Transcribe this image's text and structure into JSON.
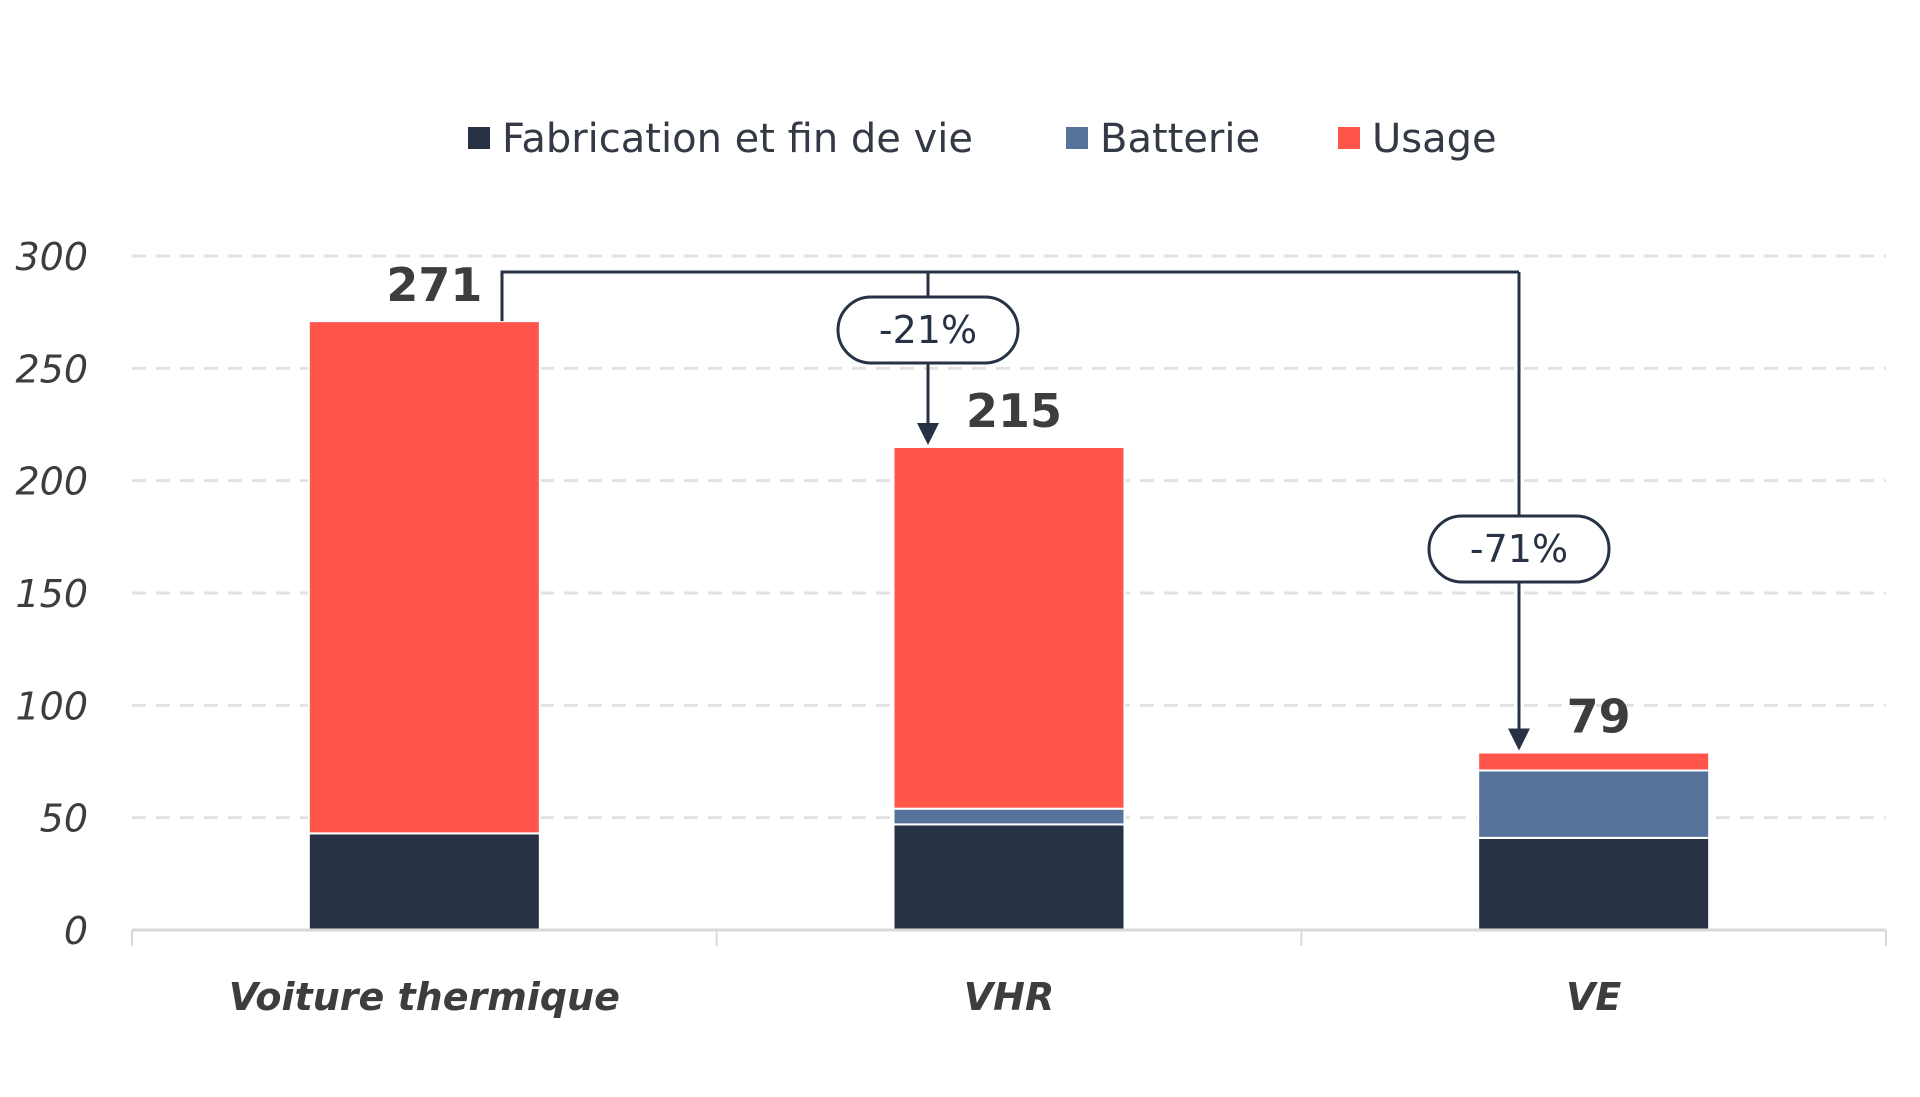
{
  "chart_data": {
    "type": "bar",
    "stacked": true,
    "categories": [
      "Voiture thermique",
      "VHR",
      "VE"
    ],
    "series": [
      {
        "name": "Fabrication et fin de vie",
        "color": "#283245",
        "values": [
          43,
          47,
          41
        ]
      },
      {
        "name": "Batterie",
        "color": "#55729a",
        "values": [
          0,
          7,
          30
        ]
      },
      {
        "name": "Usage",
        "color": "#ff554b",
        "values": [
          228,
          161,
          8
        ]
      }
    ],
    "totals": [
      "271",
      "215",
      "79"
    ],
    "total_values": [
      271,
      215,
      79
    ],
    "ylim": [
      0,
      300
    ],
    "yticks": [
      "0",
      "50",
      "100",
      "150",
      "200",
      "250",
      "300"
    ],
    "ytick_values": [
      0,
      50,
      100,
      150,
      200,
      250,
      300
    ],
    "grid": true,
    "legend_position": "top-center",
    "annotations": [
      {
        "label": "-21%",
        "from": "Voiture thermique",
        "to": "VHR"
      },
      {
        "label": "-71%",
        "from": "Voiture thermique",
        "to": "VE"
      }
    ],
    "title": "",
    "xlabel": "",
    "ylabel": ""
  }
}
